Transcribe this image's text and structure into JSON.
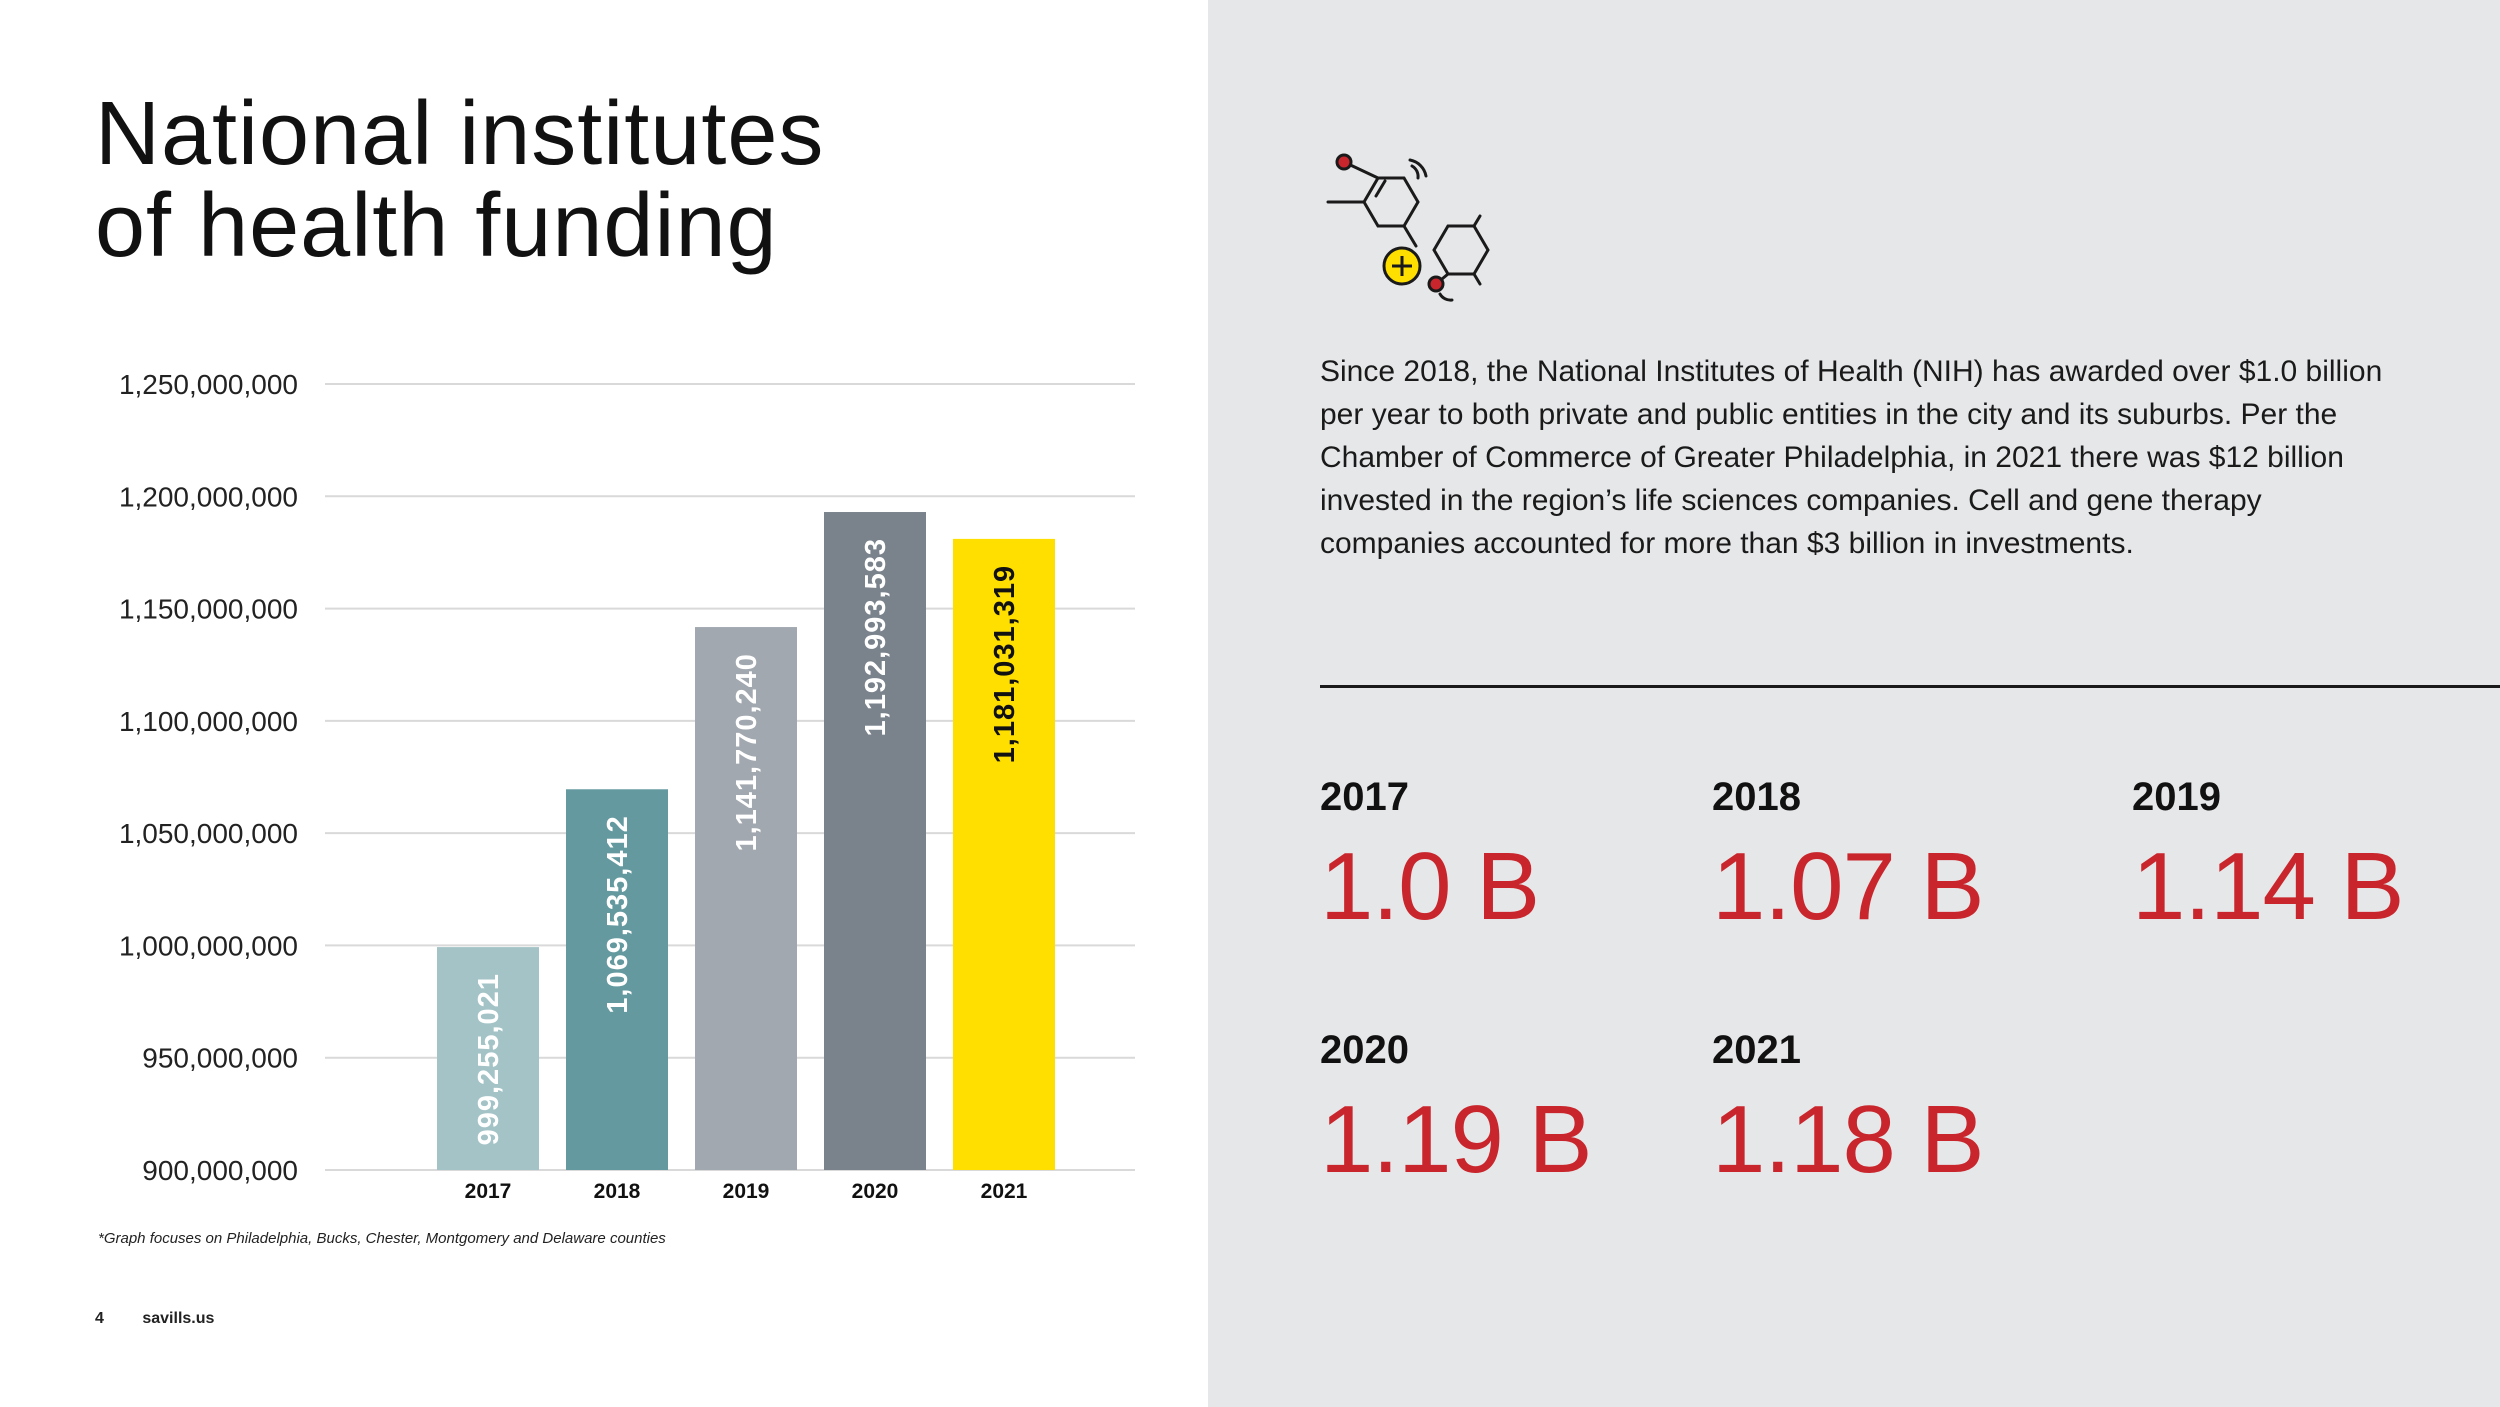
{
  "title": {
    "line1": "National institutes",
    "line2": "of health funding"
  },
  "chart_data": {
    "type": "bar",
    "title": "National institutes of health funding",
    "categories": [
      "2017",
      "2018",
      "2019",
      "2020",
      "2021"
    ],
    "values": [
      999255021,
      1069535412,
      1141770240,
      1192993583,
      1181031319
    ],
    "value_labels": [
      "999,255,021",
      "1,069,535,412",
      "1,141,770,240",
      "1,192,993,583",
      "1,181,031,319"
    ],
    "bar_colors": [
      "#a3c3c7",
      "#63999f",
      "#a1a8af",
      "#7a828c",
      "#ffdf00"
    ],
    "label_colors": [
      "#ffffff",
      "#ffffff",
      "#ffffff",
      "#ffffff",
      "#111111"
    ],
    "ylim": [
      900000000,
      1250000000
    ],
    "yticks": [
      900000000,
      950000000,
      1000000000,
      1050000000,
      1100000000,
      1150000000,
      1200000000,
      1250000000
    ],
    "ytick_labels": [
      "900,000,000",
      "950,000,000",
      "1,000,000,000",
      "1,050,000,000",
      "1,100,000,000",
      "1,150,000,000",
      "1,200,000,000",
      "1,250,000,000"
    ],
    "xlabel": "",
    "ylabel": "",
    "grid": true,
    "legend": "none"
  },
  "footnote": "*Graph focuses on Philadelphia, Bucks, Chester, Montgomery and Delaware counties",
  "footer": {
    "page_number": "4",
    "site": "savills.us"
  },
  "icon": {
    "name": "molecule-icon",
    "accent_yellow": "#ffdf00",
    "accent_red": "#c8262c"
  },
  "body_text": "Since 2018, the National Institutes of Health (NIH) has awarded over $1.0 billion per year to both private and public entities in the city and its suburbs. Per the Chamber of Commerce of Greater Philadelphia, in 2021 there was $12 billion invested in the region’s life sciences companies. Cell and gene therapy companies accounted for more than $3 billion in investments.",
  "stats": [
    {
      "year": "2017",
      "value": "1.0 B"
    },
    {
      "year": "2018",
      "value": "1.07 B"
    },
    {
      "year": "2019",
      "value": "1.14 B"
    },
    {
      "year": "2020",
      "value": "1.19 B"
    },
    {
      "year": "2021",
      "value": "1.18 B"
    }
  ],
  "colors": {
    "stat_red": "#c8262c",
    "panel_grey": "#e6e7e9",
    "grid": "#d9d9d9"
  }
}
